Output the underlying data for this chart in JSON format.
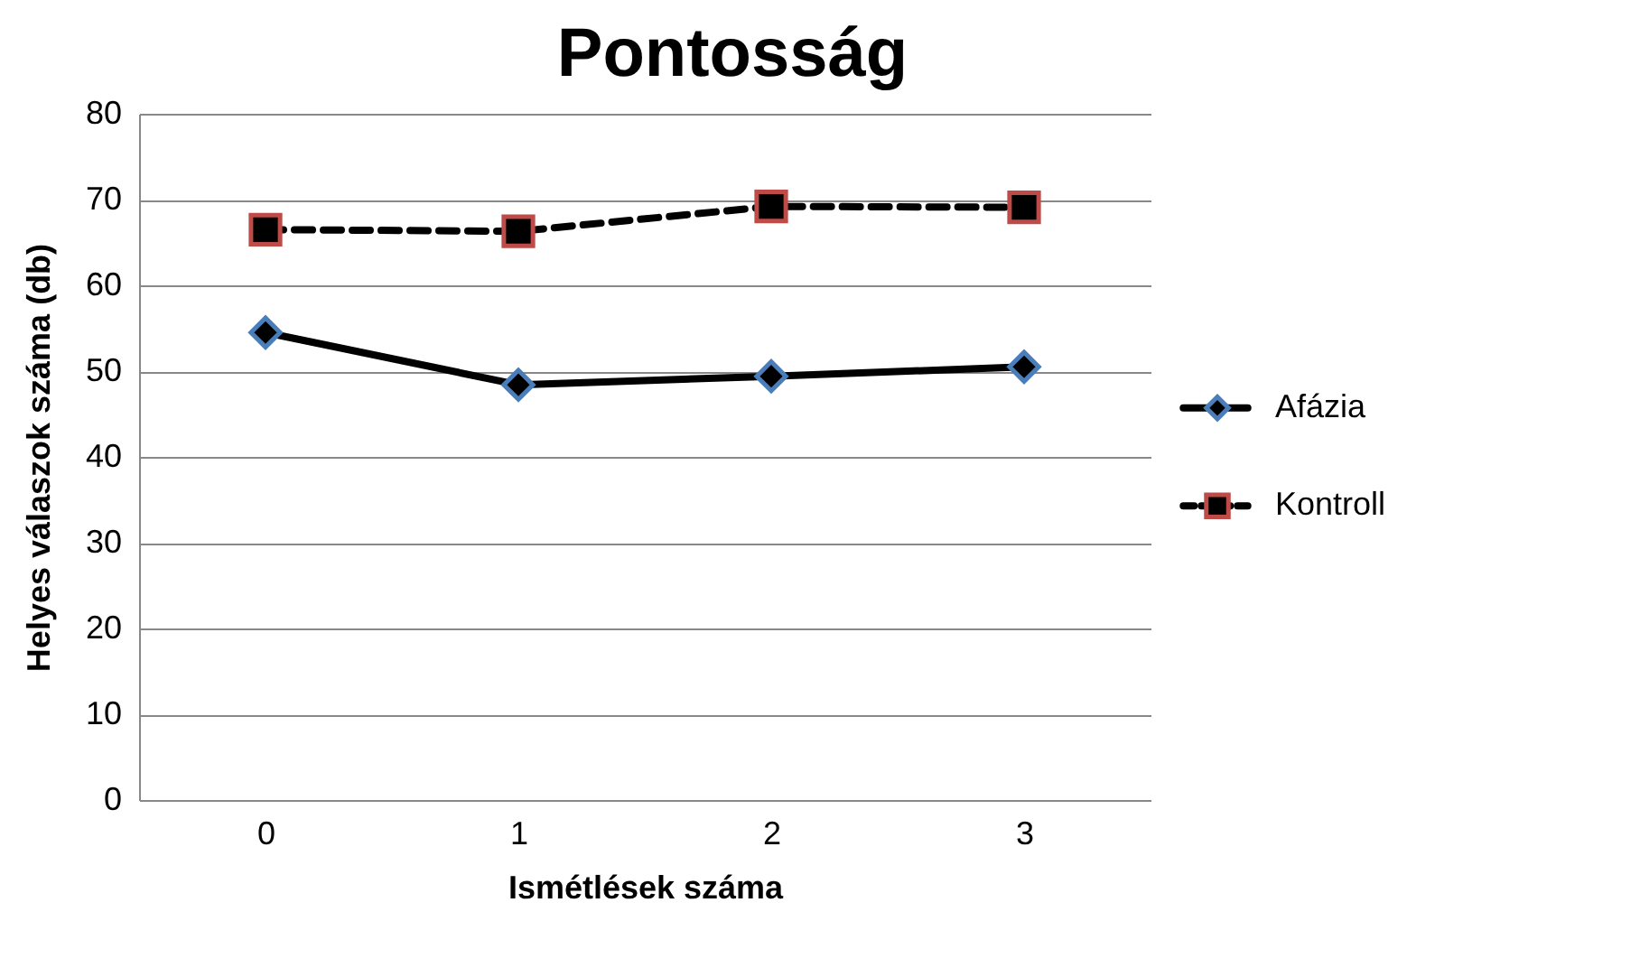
{
  "chart_data": {
    "type": "line",
    "title": "Pontosság",
    "xlabel": "Ismétlések száma",
    "ylabel": "Helyes válaszok száma (db)",
    "categories": [
      "0",
      "1",
      "2",
      "3"
    ],
    "series": [
      {
        "name": "Afázia",
        "color": "#4a7ebb",
        "marker": "diamond",
        "line_style": "solid",
        "values": [
          54.5,
          48.4,
          49.4,
          50.5
        ]
      },
      {
        "name": "Kontroll",
        "color": "#be4b48",
        "marker": "square",
        "line_style": "dashed",
        "values": [
          66.5,
          66.3,
          69.2,
          69.1
        ]
      }
    ],
    "ylim": [
      0,
      80
    ],
    "yticks": [
      0,
      10,
      20,
      30,
      40,
      50,
      60,
      70,
      80
    ],
    "grid": "y",
    "legend": "right"
  }
}
